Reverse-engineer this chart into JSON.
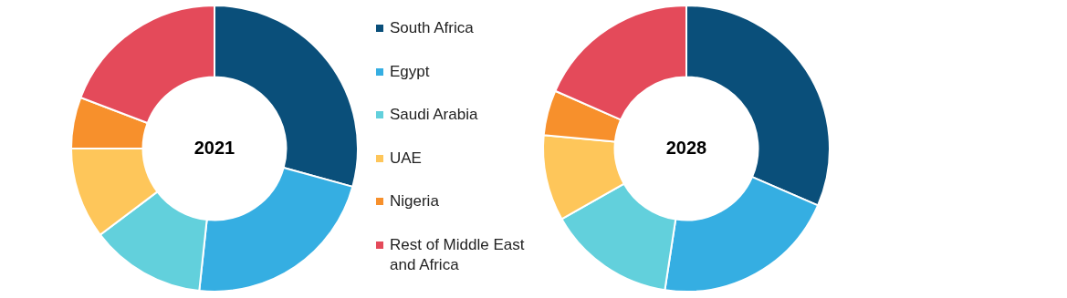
{
  "chart_data": {
    "type": "donut",
    "categories": [
      "South Africa",
      "Egypt",
      "Saudi Arabia",
      "UAE",
      "Nigeria",
      "Rest of Middle East and Africa"
    ],
    "colors": [
      "#0a4f7a",
      "#35aee2",
      "#62d0dc",
      "#fec65a",
      "#f7902c",
      "#e44a5a"
    ],
    "legend": "right",
    "series": [
      {
        "name": "2021",
        "values": [
          29.3,
          22.4,
          13,
          10.3,
          5.8,
          19.2
        ]
      },
      {
        "name": "2028",
        "values": [
          31.5,
          20.9,
          14.4,
          9.7,
          5.1,
          18.4
        ]
      }
    ]
  }
}
